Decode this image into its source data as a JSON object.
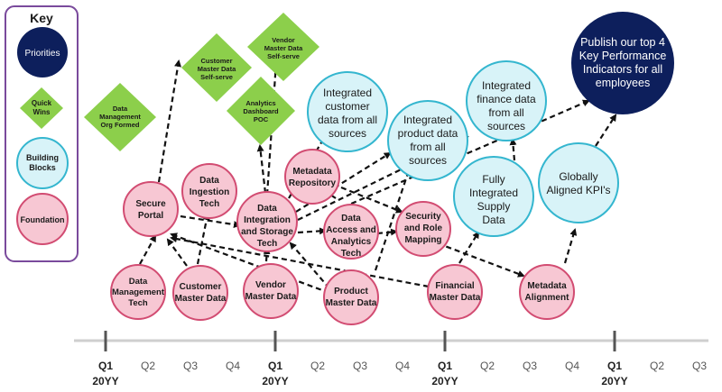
{
  "key": {
    "title": "Key",
    "items": [
      {
        "label": "Priorities",
        "type": "priority"
      },
      {
        "label": "Quick Wins",
        "type": "quickwin"
      },
      {
        "label": "Building Blocks",
        "type": "building"
      },
      {
        "label": "Foundation",
        "type": "foundation"
      }
    ]
  },
  "colors": {
    "priority_fill": "#0d1f5c",
    "quickwin_fill": "#8ccf4b",
    "building_fill": "#d8f3f8",
    "building_stroke": "#34b6cf",
    "foundation_fill": "#f7c7d3",
    "foundation_stroke": "#d24c72",
    "key_border": "#7a4a9c",
    "arrow": "#111111",
    "timeline": "#cfcfcf",
    "tick": "#555555"
  },
  "nodes": {
    "data_mgmt_tech": "Data Management Tech",
    "customer_master": "Customer Master Data",
    "vendor_master": "Vendor Master Data",
    "product_master": "Product Master Data",
    "financial_master": "Financial Master Data",
    "metadata_alignment": "Metadata Alignment",
    "secure_portal": "Secure Portal",
    "data_ingestion": "Data Ingestion Tech",
    "data_integration": "Data Integration and Storage Tech",
    "metadata_repo": "Metadata Repository",
    "data_access": "Data Access and Analytics Tech",
    "security_role": "Security and Role Mapping",
    "integrated_customer": "Integrated customer data from all sources",
    "integrated_product": "Integrated product data from all sources",
    "integrated_finance": "Integrated finance data from all sources",
    "fully_supply": "Fully Integrated Supply Data",
    "globally_kpi": "Globally Aligned KPI's",
    "publish_kpi": "Publish our top 4 Key Performance Indicators for all employees",
    "dm_org": "Data Management Org Formed",
    "customer_selfserve": "Customer Master Data Self-serve",
    "vendor_selfserve": "Vendor Master Data Self-serve",
    "analytics_poc": "Analytics Dashboard POC"
  },
  "timeline": {
    "ticks": [
      "Q1",
      "Q2",
      "Q3",
      "Q4",
      "Q1",
      "Q2",
      "Q3",
      "Q4",
      "Q1",
      "Q2",
      "Q3",
      "Q4",
      "Q1",
      "Q2",
      "Q3"
    ],
    "year_label": "20YY"
  }
}
